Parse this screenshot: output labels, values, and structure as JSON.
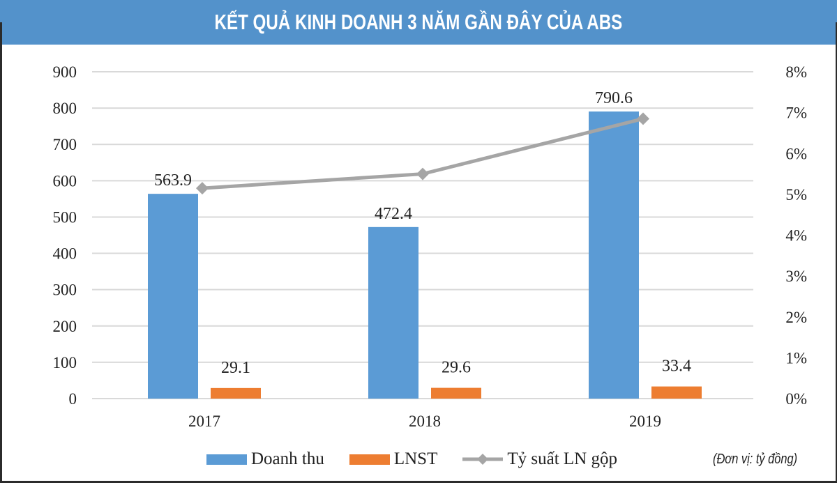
{
  "title": "KẾT QUẢ KINH DOANH 3 NĂM GẦN ĐÂY CỦA ABS",
  "unit_note": "(Đơn vị: tỷ đồng)",
  "colors": {
    "title_bg": "#5392cb",
    "doanh_thu": "#5b9bd5",
    "lnst": "#ed7d31",
    "ty_suat": "#a5a5a5",
    "grid": "#d9d9d9"
  },
  "legend": [
    {
      "label": "Doanh thu",
      "color": "#5b9bd5",
      "kind": "bar"
    },
    {
      "label": "LNST",
      "color": "#ed7d31",
      "kind": "bar"
    },
    {
      "label": "Tỷ suất LN gộp",
      "color": "#a5a5a5",
      "kind": "line"
    }
  ],
  "chart_data": {
    "type": "bar",
    "title": "KẾT QUẢ KINH DOANH 3 NĂM GẦN ĐÂY CỦA ABS",
    "categories": [
      "2017",
      "2018",
      "2019"
    ],
    "series": [
      {
        "name": "Doanh thu",
        "type": "bar",
        "axis": "left",
        "values": [
          563.9,
          472.4,
          790.6
        ],
        "labels": [
          "563.9",
          "472.4",
          "790.6"
        ]
      },
      {
        "name": "LNST",
        "type": "bar",
        "axis": "left",
        "values": [
          29.1,
          29.6,
          33.4
        ],
        "labels": [
          "29.1",
          "29.6",
          "33.4"
        ]
      },
      {
        "name": "Tỷ suất LN gộp",
        "type": "line",
        "axis": "right",
        "values": [
          5.15,
          5.5,
          6.85
        ],
        "unit": "%"
      }
    ],
    "left_axis": {
      "ylim": [
        0,
        900
      ],
      "ticks": [
        "0",
        "100",
        "200",
        "300",
        "400",
        "500",
        "600",
        "700",
        "800",
        "900"
      ]
    },
    "right_axis": {
      "ylim": [
        0,
        8
      ],
      "ticks": [
        "0%",
        "1%",
        "2%",
        "3%",
        "4%",
        "5%",
        "6%",
        "7%",
        "8%"
      ]
    },
    "xlabel": "",
    "ylabel": "",
    "grid": true,
    "legend_position": "bottom",
    "annotation": "(Đơn vị: tỷ đồng)"
  }
}
